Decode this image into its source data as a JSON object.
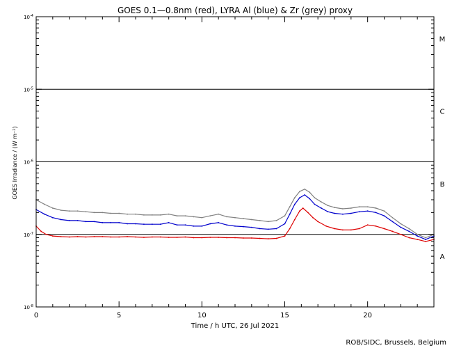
{
  "chart_data": {
    "type": "line",
    "title": "GOES 0.1—0.8nm (red), LYRA Al (blue) & Zr (grey) proxy",
    "xlabel": "Time / h UTC, 26 Jul 2021",
    "ylabel": "GOES Irradiance / (W m⁻²)",
    "xlim": [
      0,
      24
    ],
    "ylim": [
      1e-08,
      0.0001
    ],
    "yscale": "log",
    "x_ticks": [
      0,
      5,
      10,
      15,
      20
    ],
    "x_tick_labels": [
      "0",
      "5",
      "10",
      "15",
      "20"
    ],
    "y_ticks": [
      1e-08,
      1e-07,
      1e-06,
      1e-05,
      0.0001
    ],
    "y_tick_labels": [
      {
        "base": "10",
        "exp": "-8"
      },
      {
        "base": "10",
        "exp": "-7"
      },
      {
        "base": "10",
        "exp": "-6"
      },
      {
        "base": "10",
        "exp": "-5"
      },
      {
        "base": "10",
        "exp": "-4"
      }
    ],
    "flare_class_lines": [
      1e-07,
      1e-06,
      1e-05
    ],
    "flare_classes": [
      {
        "label": "M",
        "level": 5e-05
      },
      {
        "label": "C",
        "level": 5e-06
      },
      {
        "label": "B",
        "level": 5e-07
      },
      {
        "label": "A",
        "level": 5e-08
      }
    ],
    "series": [
      {
        "color": "#808080",
        "x": [
          0,
          0.5,
          1,
          1.5,
          2,
          2.5,
          3,
          3.5,
          4,
          4.5,
          5,
          5.5,
          6,
          6.5,
          7,
          7.5,
          8,
          8.5,
          9,
          9.5,
          10,
          10.5,
          11,
          11.5,
          12,
          12.5,
          13,
          13.5,
          14,
          14.5,
          15,
          15.3,
          15.6,
          15.9,
          16.2,
          16.5,
          16.8,
          17.2,
          17.6,
          18,
          18.5,
          19,
          19.5,
          20,
          20.5,
          21,
          21.5,
          22,
          22.5,
          23,
          23.5,
          24
        ],
        "values": [
          3e-07,
          2.6e-07,
          2.3e-07,
          2.15e-07,
          2.1e-07,
          2.1e-07,
          2.05e-07,
          2e-07,
          2e-07,
          1.95e-07,
          1.95e-07,
          1.9e-07,
          1.9e-07,
          1.85e-07,
          1.85e-07,
          1.85e-07,
          1.9e-07,
          1.8e-07,
          1.8e-07,
          1.75e-07,
          1.7e-07,
          1.8e-07,
          1.9e-07,
          1.75e-07,
          1.7e-07,
          1.65e-07,
          1.6e-07,
          1.55e-07,
          1.5e-07,
          1.55e-07,
          1.8e-07,
          2.4e-07,
          3.2e-07,
          3.9e-07,
          4.2e-07,
          3.8e-07,
          3.2e-07,
          2.8e-07,
          2.5e-07,
          2.35e-07,
          2.25e-07,
          2.3e-07,
          2.4e-07,
          2.4e-07,
          2.3e-07,
          2.1e-07,
          1.7e-07,
          1.4e-07,
          1.2e-07,
          1e-07,
          9e-08,
          1e-07
        ]
      },
      {
        "color": "#0000cc",
        "x": [
          0,
          0.5,
          1,
          1.5,
          2,
          2.5,
          3,
          3.5,
          4,
          4.5,
          5,
          5.5,
          6,
          6.5,
          7,
          7.5,
          8,
          8.5,
          9,
          9.5,
          10,
          10.5,
          11,
          11.5,
          12,
          12.5,
          13,
          13.5,
          14,
          14.5,
          15,
          15.3,
          15.6,
          15.9,
          16.2,
          16.5,
          16.8,
          17.2,
          17.6,
          18,
          18.5,
          19,
          19.5,
          20,
          20.5,
          21,
          21.5,
          22,
          22.5,
          23,
          23.5,
          24
        ],
        "values": [
          2.2e-07,
          1.9e-07,
          1.7e-07,
          1.6e-07,
          1.55e-07,
          1.55e-07,
          1.5e-07,
          1.5e-07,
          1.45e-07,
          1.45e-07,
          1.45e-07,
          1.4e-07,
          1.4e-07,
          1.38e-07,
          1.38e-07,
          1.38e-07,
          1.45e-07,
          1.35e-07,
          1.35e-07,
          1.3e-07,
          1.3e-07,
          1.4e-07,
          1.45e-07,
          1.35e-07,
          1.3e-07,
          1.28e-07,
          1.25e-07,
          1.2e-07,
          1.18e-07,
          1.2e-07,
          1.4e-07,
          1.9e-07,
          2.6e-07,
          3.2e-07,
          3.5e-07,
          3.1e-07,
          2.6e-07,
          2.3e-07,
          2.05e-07,
          1.95e-07,
          1.9e-07,
          1.95e-07,
          2.05e-07,
          2.1e-07,
          2e-07,
          1.8e-07,
          1.5e-07,
          1.25e-07,
          1.1e-07,
          9.5e-08,
          8.5e-08,
          9.5e-08
        ]
      },
      {
        "color": "#dd0000",
        "x": [
          0,
          0.3,
          0.6,
          1,
          1.5,
          2,
          2.5,
          3,
          3.5,
          4,
          4.5,
          5,
          5.5,
          6,
          6.5,
          7,
          7.5,
          8,
          8.5,
          9,
          9.5,
          10,
          10.5,
          11,
          11.5,
          12,
          12.5,
          13,
          13.5,
          14,
          14.5,
          15,
          15.3,
          15.6,
          15.9,
          16.1,
          16.4,
          16.7,
          17,
          17.5,
          18,
          18.5,
          19,
          19.5,
          20,
          20.5,
          21,
          21.5,
          22,
          22.5,
          23,
          23.5,
          24
        ],
        "values": [
          1.3e-07,
          1.1e-07,
          1e-07,
          9.5e-08,
          9.3e-08,
          9.2e-08,
          9.3e-08,
          9.2e-08,
          9.3e-08,
          9.3e-08,
          9.2e-08,
          9.2e-08,
          9.3e-08,
          9.2e-08,
          9.1e-08,
          9.2e-08,
          9.2e-08,
          9.1e-08,
          9.1e-08,
          9.2e-08,
          9e-08,
          9e-08,
          9.1e-08,
          9.1e-08,
          9e-08,
          9e-08,
          8.9e-08,
          8.9e-08,
          8.8e-08,
          8.7e-08,
          8.8e-08,
          9.5e-08,
          1.2e-07,
          1.6e-07,
          2.1e-07,
          2.3e-07,
          2e-07,
          1.7e-07,
          1.5e-07,
          1.3e-07,
          1.2e-07,
          1.15e-07,
          1.15e-07,
          1.2e-07,
          1.35e-07,
          1.3e-07,
          1.2e-07,
          1.1e-07,
          1e-07,
          9e-08,
          8.5e-08,
          8e-08,
          8.5e-08
        ]
      }
    ],
    "credit": "ROB/SIDC, Brussels, Belgium",
    "grid": false,
    "legend": "none"
  }
}
